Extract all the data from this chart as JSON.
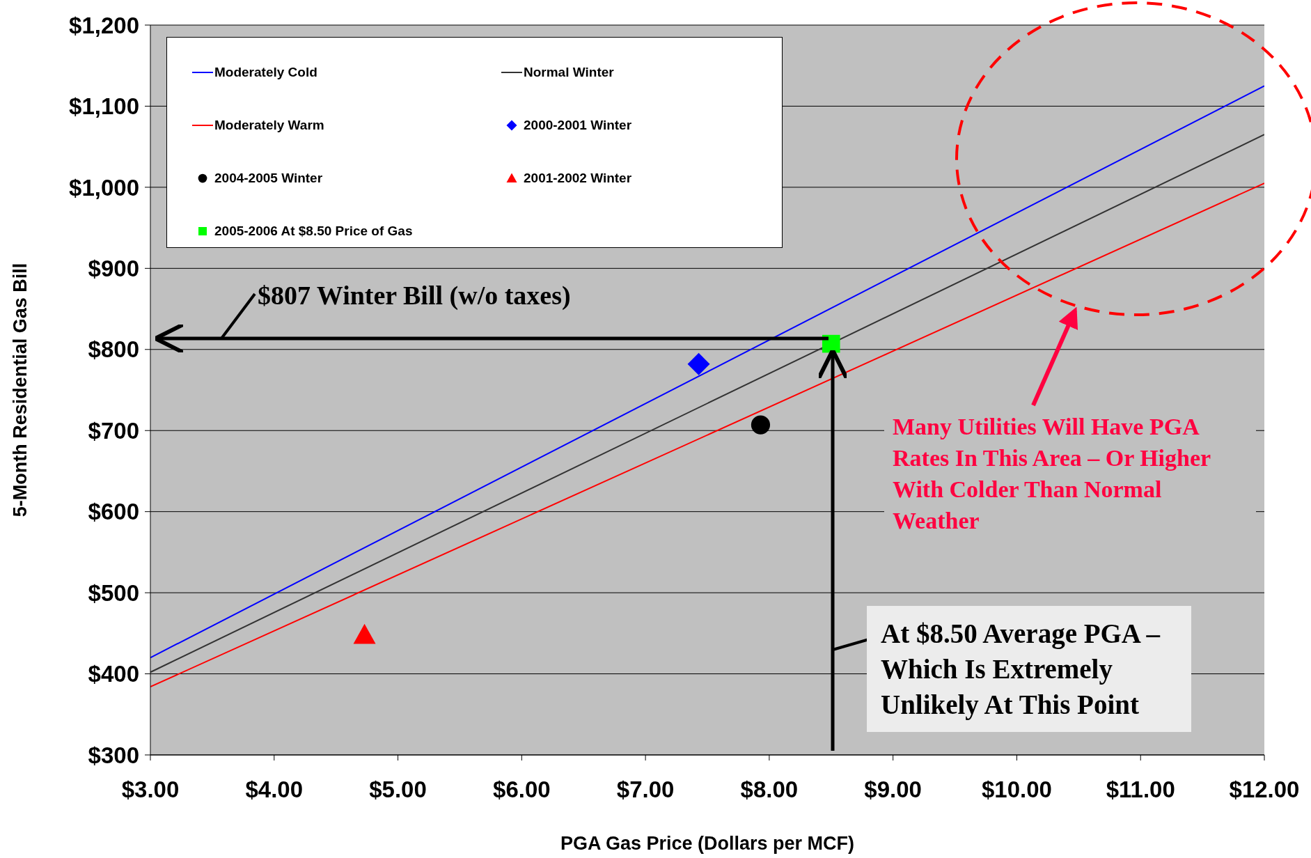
{
  "chart_data": {
    "type": "line",
    "xlabel": "PGA Gas Price (Dollars per MCF)",
    "ylabel": "5-Month Residential Gas Bill",
    "xlim": [
      3,
      12
    ],
    "xticks": [
      {
        "value": 3,
        "label": "$3.00"
      },
      {
        "value": 4,
        "label": "$4.00"
      },
      {
        "value": 5,
        "label": "$5.00"
      },
      {
        "value": 6,
        "label": "$6.00"
      },
      {
        "value": 7,
        "label": "$7.00"
      },
      {
        "value": 8,
        "label": "$8.00"
      },
      {
        "value": 9,
        "label": "$9.00"
      },
      {
        "value": 10,
        "label": "$10.00"
      },
      {
        "value": 11,
        "label": "$11.00"
      },
      {
        "value": 12,
        "label": "$12.00"
      }
    ],
    "ylim": [
      300,
      1200
    ],
    "yticks": [
      {
        "value": 300,
        "label": "$300"
      },
      {
        "value": 400,
        "label": "$400"
      },
      {
        "value": 500,
        "label": "$500"
      },
      {
        "value": 600,
        "label": "$600"
      },
      {
        "value": 700,
        "label": "$700"
      },
      {
        "value": 800,
        "label": "$800"
      },
      {
        "value": 900,
        "label": "$900"
      },
      {
        "value": 1000,
        "label": "$1,000"
      },
      {
        "value": 1100,
        "label": "$1,100"
      },
      {
        "value": 1200,
        "label": "$1,200"
      }
    ],
    "grid": "y",
    "legend": "top left",
    "series": [
      {
        "name": "Moderately Cold",
        "color": "#0000ff",
        "marker": "none",
        "x": [
          3,
          12
        ],
        "values": [
          420,
          1125
        ]
      },
      {
        "name": "Normal Winter",
        "color": "#333333",
        "marker": "none",
        "x": [
          3,
          12
        ],
        "values": [
          402,
          1065
        ]
      },
      {
        "name": "Moderately Warm",
        "color": "#ff0000",
        "marker": "none",
        "x": [
          3,
          12
        ],
        "values": [
          384,
          1005
        ]
      },
      {
        "name": "2000-2001 Winter",
        "type": "scatter",
        "color": "#0000ff",
        "marker": "diamond",
        "x": [
          7.43
        ],
        "values": [
          782
        ]
      },
      {
        "name": "2004-2005 Winter",
        "type": "scatter",
        "color": "#000000",
        "marker": "circle",
        "x": [
          7.93
        ],
        "values": [
          707
        ]
      },
      {
        "name": "2001-2002 Winter",
        "type": "scatter",
        "color": "#ff0000",
        "marker": "triangle",
        "x": [
          4.73
        ],
        "values": [
          448
        ]
      },
      {
        "name": "2005-2006 At $8.50 Price of Gas",
        "type": "scatter",
        "color": "#00ff00",
        "marker": "square",
        "x": [
          8.5
        ],
        "values": [
          807
        ]
      }
    ],
    "annotations": [
      "$807 Winter Bill (w/o taxes)",
      "At $8.50 Average PGA – Which Is Extremely Unlikely At This Point",
      "Many Utilities Will Have PGA Rates In This Area – Or Higher With Colder Than Normal Weather"
    ]
  }
}
